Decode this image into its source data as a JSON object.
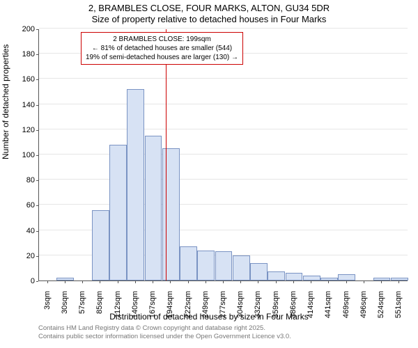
{
  "title": {
    "line1": "2, BRAMBLES CLOSE, FOUR MARKS, ALTON, GU34 5DR",
    "line2": "Size of property relative to detached houses in Four Marks"
  },
  "chart": {
    "type": "histogram",
    "xlabel": "Distribution of detached houses by size in Four Marks",
    "ylabel": "Number of detached properties",
    "ylim": [
      0,
      200
    ],
    "ytick_step": 20,
    "yticks": [
      0,
      20,
      40,
      60,
      80,
      100,
      120,
      140,
      160,
      180,
      200
    ],
    "xticks": [
      "3sqm",
      "30sqm",
      "57sqm",
      "85sqm",
      "112sqm",
      "140sqm",
      "167sqm",
      "194sqm",
      "222sqm",
      "249sqm",
      "277sqm",
      "304sqm",
      "332sqm",
      "359sqm",
      "386sqm",
      "414sqm",
      "441sqm",
      "469sqm",
      "496sqm",
      "524sqm",
      "551sqm"
    ],
    "values": [
      0,
      2,
      0,
      56,
      108,
      152,
      115,
      105,
      27,
      24,
      23,
      20,
      14,
      7,
      6,
      4,
      2,
      5,
      0,
      2,
      2
    ],
    "bar_fill": "#d7e2f4",
    "bar_border": "#7a93c3",
    "background_color": "#ffffff",
    "grid_color": "#555555",
    "grid_opacity": 0.15,
    "marker_x_index": 7.2,
    "marker_color": "#cc0000",
    "annotation": {
      "line1": "2 BRAMBLES CLOSE: 199sqm",
      "line2": "← 81% of detached houses are smaller (544)",
      "line3": "19% of semi-detached houses are larger (130) →",
      "border_color": "#cc0000",
      "background": "#ffffff",
      "fontsize": 10
    }
  },
  "attribution": {
    "line1": "Contains HM Land Registry data © Crown copyright and database right 2025.",
    "line2": "Contains public sector information licensed under the Open Government Licence v3.0."
  }
}
